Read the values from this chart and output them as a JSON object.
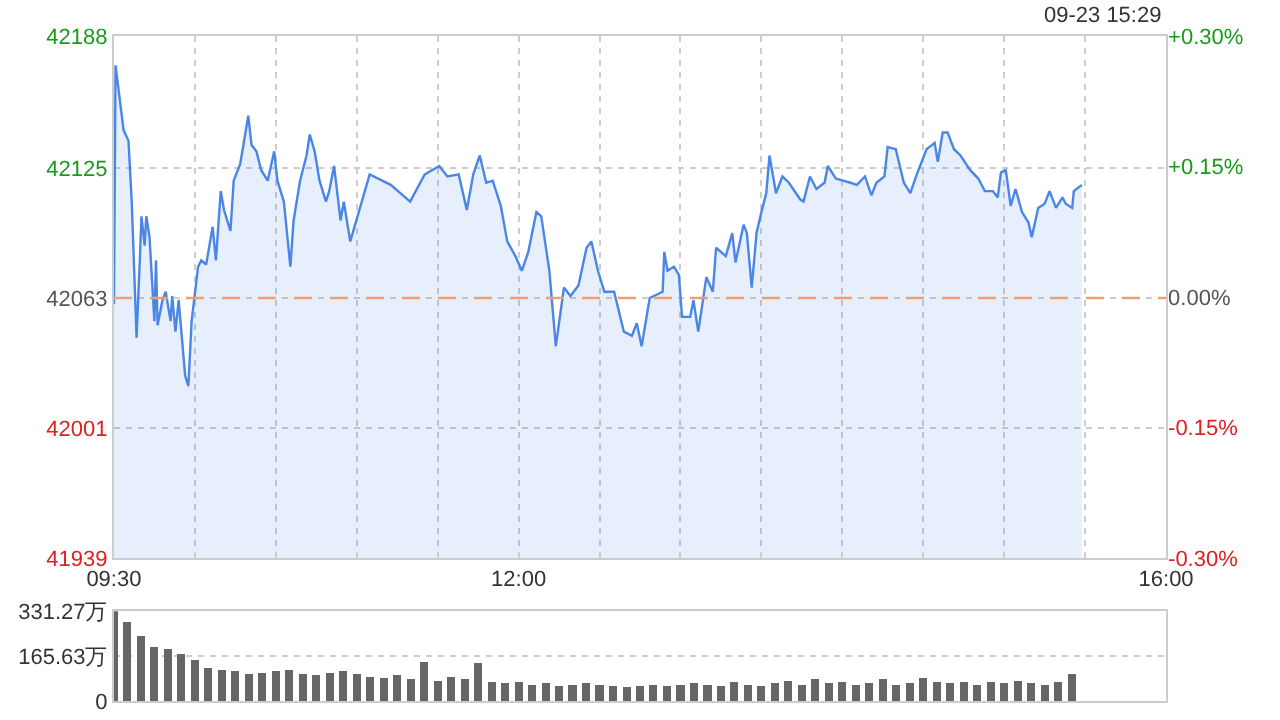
{
  "chart_data": [
    {
      "type": "area",
      "annotations": [
        "09-23 15:29"
      ],
      "x": [
        9.5,
        9.51,
        9.56,
        9.59,
        9.61,
        9.64,
        9.66,
        9.67,
        9.69,
        9.7,
        9.72,
        9.75,
        9.76,
        9.77,
        9.8,
        9.82,
        9.85,
        9.86,
        9.88,
        9.9,
        9.92,
        9.94,
        9.96,
        9.98,
        10.02,
        10.04,
        10.07,
        10.11,
        10.13,
        10.16,
        10.18,
        10.22,
        10.24,
        10.28,
        10.3,
        10.33,
        10.35,
        10.38,
        10.41,
        10.45,
        10.49,
        10.51,
        10.55,
        10.59,
        10.61,
        10.65,
        10.69,
        10.71,
        10.74,
        10.77,
        10.81,
        10.83,
        10.86,
        10.9,
        10.92,
        10.96,
        11.08,
        11.21,
        11.33,
        11.42,
        11.51,
        11.56,
        11.63,
        11.68,
        11.72,
        11.76,
        11.8,
        11.84,
        11.89,
        11.93,
        11.98,
        12.02,
        12.06,
        12.11,
        12.14,
        12.19,
        12.23,
        12.28,
        12.32,
        12.37,
        12.42,
        12.45,
        12.49,
        12.53,
        12.59,
        12.65,
        12.7,
        12.73,
        12.76,
        12.81,
        12.89,
        12.9,
        12.92,
        12.96,
        12.99,
        13.01,
        13.06,
        13.08,
        13.11,
        13.16,
        13.2,
        13.22,
        13.28,
        13.32,
        13.34,
        13.39,
        13.41,
        13.44,
        13.47,
        13.5,
        13.53,
        13.55,
        13.59,
        13.63,
        13.67,
        13.74,
        13.76,
        13.8,
        13.84,
        13.89,
        13.91,
        13.96,
        14.05,
        14.09,
        14.14,
        14.18,
        14.21,
        14.26,
        14.28,
        14.33,
        14.38,
        14.42,
        14.46,
        14.52,
        14.57,
        14.59,
        14.62,
        14.65,
        14.69,
        14.73,
        14.79,
        14.84,
        14.88,
        14.93,
        14.96,
        14.98,
        15.01,
        15.04,
        15.07,
        15.11,
        15.15,
        15.17,
        15.21,
        15.25,
        15.28,
        15.32,
        15.36,
        15.38,
        15.42,
        15.43,
        15.48
      ],
      "series": [
        {
          "color": "#4a86e8",
          "values": [
            42060,
            42174,
            42143,
            42138,
            42109,
            42044,
            42081,
            42102,
            42088,
            42102,
            42092,
            42052,
            42081,
            42050,
            42062,
            42066,
            42052,
            42064,
            42047,
            42062,
            42044,
            42026,
            42021,
            42052,
            42078,
            42081,
            42079,
            42097,
            42081,
            42114,
            42105,
            42095,
            42119,
            42127,
            42136,
            42150,
            42136,
            42133,
            42124,
            42119,
            42133,
            42119,
            42109,
            42078,
            42100,
            42119,
            42131,
            42141,
            42133,
            42119,
            42109,
            42114,
            42126,
            42100,
            42109,
            42090,
            42122,
            42117,
            42109,
            42122,
            42126,
            42121,
            42122,
            42105,
            42122,
            42131,
            42118,
            42119,
            42107,
            42090,
            42083,
            42076,
            42085,
            42104,
            42102,
            42076,
            42040,
            42068,
            42064,
            42069,
            42087,
            42090,
            42076,
            42066,
            42066,
            42047,
            42045,
            42051,
            42040,
            42063,
            42066,
            42085,
            42076,
            42078,
            42074,
            42054,
            42054,
            42062,
            42047,
            42073,
            42066,
            42087,
            42083,
            42094,
            42080,
            42098,
            42094,
            42068,
            42094,
            42104,
            42113,
            42131,
            42113,
            42121,
            42118,
            42110,
            42109,
            42121,
            42115,
            42118,
            42126,
            42120,
            42118,
            42117,
            42121,
            42112,
            42118,
            42121,
            42135,
            42134,
            42118,
            42113,
            42122,
            42134,
            42137,
            42128,
            42142,
            42142,
            42134,
            42131,
            42124,
            42120,
            42114,
            42114,
            42111,
            42123,
            42124,
            42107,
            42115,
            42104,
            42099,
            42092,
            42106,
            42108,
            42114,
            42106,
            42111,
            42108,
            42106,
            42114,
            42117
          ]
        }
      ],
      "xlim": [
        9.5,
        16
      ],
      "xticks": [
        {
          "value": 9.5,
          "label": "09:30"
        },
        {
          "value": 10,
          "label": null
        },
        {
          "value": 10.5,
          "label": null
        },
        {
          "value": 11,
          "label": null
        },
        {
          "value": 11.5,
          "label": null
        },
        {
          "value": 12,
          "label": "12:00"
        },
        {
          "value": 12.5,
          "label": null
        },
        {
          "value": 13,
          "label": null
        },
        {
          "value": 13.5,
          "label": null
        },
        {
          "value": 14,
          "label": null
        },
        {
          "value": 14.5,
          "label": null
        },
        {
          "value": 15,
          "label": null
        },
        {
          "value": 15.5,
          "label": null
        },
        {
          "value": 16,
          "label": "16:00"
        }
      ],
      "ylim": [
        41939,
        42188
      ],
      "yticks": [
        41939,
        42001,
        42063,
        42125,
        42188
      ],
      "y2lim": [
        -0.3,
        0.3
      ],
      "y2ticks": [
        {
          "value": -0.3,
          "label": "-0.30%"
        },
        {
          "value": -0.15,
          "label": "-0.15%"
        },
        {
          "value": 0,
          "label": "0.00%"
        },
        {
          "value": 0.15,
          "label": "+0.15%"
        },
        {
          "value": 0.3,
          "label": "+0.30%"
        }
      ],
      "ref_lines": [
        {
          "axis": "y",
          "value": 42063,
          "color": "#f0a070",
          "line_style": "dashed"
        }
      ],
      "grid": true
    },
    {
      "type": "bar",
      "color": "#666666",
      "x": [
        9.5,
        9.583,
        9.667,
        9.75,
        9.833,
        9.917,
        10,
        10.083,
        10.167,
        10.25,
        10.333,
        10.417,
        10.5,
        10.583,
        10.667,
        10.75,
        10.833,
        10.917,
        11,
        11.083,
        11.167,
        11.25,
        11.333,
        11.417,
        11.5,
        11.583,
        11.667,
        11.75,
        11.833,
        11.917,
        12,
        12.083,
        12.167,
        12.25,
        12.333,
        12.417,
        12.5,
        12.583,
        12.667,
        12.75,
        12.833,
        12.917,
        13,
        13.083,
        13.167,
        13.25,
        13.333,
        13.417,
        13.5,
        13.583,
        13.667,
        13.75,
        13.833,
        13.917,
        14,
        14.083,
        14.167,
        14.25,
        14.333,
        14.417,
        14.5,
        14.583,
        14.667,
        14.75,
        14.833,
        14.917,
        15,
        15.083,
        15.167,
        15.25,
        15.333,
        15.417
      ],
      "values": [
        331,
        290,
        240,
        200,
        190,
        175,
        150,
        120,
        115,
        110,
        100,
        105,
        110,
        115,
        100,
        95,
        105,
        110,
        100,
        90,
        85,
        95,
        80,
        145,
        75,
        90,
        80,
        140,
        70,
        65,
        70,
        60,
        65,
        55,
        60,
        65,
        60,
        55,
        50,
        55,
        60,
        55,
        60,
        65,
        60,
        55,
        70,
        60,
        55,
        65,
        75,
        60,
        80,
        65,
        70,
        60,
        65,
        80,
        60,
        65,
        85,
        70,
        65,
        70,
        60,
        70,
        65,
        75,
        65,
        60,
        70,
        100
      ],
      "xlim": [
        9.5,
        16
      ],
      "ylim": [
        0,
        331.27
      ],
      "yticks": [
        {
          "value": 0,
          "label": "0"
        },
        {
          "value": 165.63,
          "label": "165.63万"
        },
        {
          "value": 331.27,
          "label": "331.27万"
        }
      ],
      "grid": "y",
      "tick_labels": "y"
    }
  ]
}
